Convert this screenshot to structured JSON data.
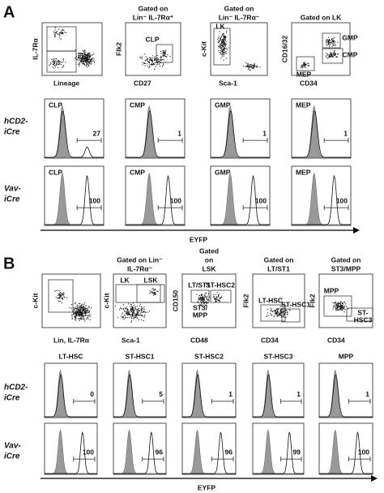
{
  "panel_a": {
    "label": "A",
    "dot_plots": [
      {
        "y_axis": "IL-7Rα",
        "x_axis": "Lineage"
      },
      {
        "header": [
          "Gated on",
          "Lin⁻ IL-7Rα⁺"
        ],
        "y_axis": "Flk2",
        "x_axis": "CD27",
        "gates": [
          "CLP"
        ]
      },
      {
        "header": [
          "Gated on",
          "Lin⁻ IL-7Rα⁻"
        ],
        "y_axis": "c-Kit",
        "x_axis": "Sca-1",
        "gates": [
          "LK"
        ]
      },
      {
        "header": [
          "Gated on LK"
        ],
        "y_axis": "CD16/32",
        "x_axis": "CD34",
        "gates": [
          "GMP",
          "CMP",
          "MEP"
        ]
      }
    ],
    "histogram_rows": [
      {
        "label": [
          "hCD2-",
          "iCre"
        ],
        "plots": [
          {
            "title": "CLP",
            "value": 27
          },
          {
            "title": "CMP",
            "value": 1
          },
          {
            "title": "GMP",
            "value": 1
          },
          {
            "title": "MEP",
            "value": 1
          }
        ]
      },
      {
        "label": [
          "Vav-",
          "iCre"
        ],
        "plots": [
          {
            "title": "CLP",
            "value": 100
          },
          {
            "title": "CMP",
            "value": 100
          },
          {
            "title": "GMP",
            "value": 100
          },
          {
            "title": "MEP",
            "value": 100
          }
        ]
      }
    ],
    "x_axis": "EYFP"
  },
  "panel_b": {
    "label": "B",
    "dot_plots": [
      {
        "y_axis": "c-Kit",
        "x_axis": "Lin, IL-7Rα"
      },
      {
        "header": [
          "Gated on Lin⁻",
          "IL-7Rα⁻"
        ],
        "y_axis": "c-Kit",
        "x_axis": "Sca-1",
        "gates": [
          "LK",
          "LSK"
        ]
      },
      {
        "header": [
          "Gated",
          "on",
          "LSK"
        ],
        "y_axis": "CD150",
        "x_axis": "CD48",
        "gates": [
          "LT/ST1",
          "ST-HSC2",
          [
            "ST3/",
            "MPP"
          ]
        ]
      },
      {
        "header": [
          "Gated on",
          "LT/ST1"
        ],
        "y_axis": "Flk2",
        "x_axis": "CD34",
        "gates": [
          "LT-HSC",
          "ST-HSC1"
        ]
      },
      {
        "header": [
          "Gated on",
          "ST3/MPP"
        ],
        "y_axis": "Flk2",
        "x_axis": "CD34",
        "gates": [
          "MPP",
          [
            "ST-",
            "HSC3"
          ]
        ]
      }
    ],
    "histogram_titles": [
      "LT-HSC",
      "ST-HSC1",
      "ST-HSC2",
      "ST-HSC3",
      "MPP"
    ],
    "histogram_rows": [
      {
        "label": [
          "hCD2-",
          "iCre"
        ],
        "values": [
          0,
          5,
          1,
          1,
          1
        ]
      },
      {
        "label": [
          "Vav-",
          "iCre"
        ],
        "values": [
          100,
          96,
          96,
          99,
          100
        ]
      }
    ],
    "x_axis": "EYFP"
  }
}
